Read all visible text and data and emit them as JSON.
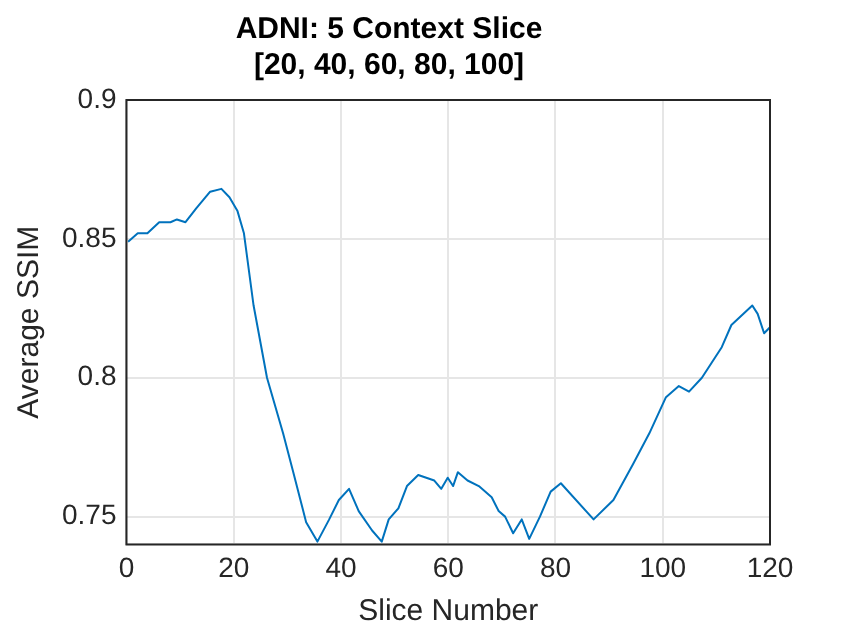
{
  "chart_data": {
    "type": "line",
    "title": "ADNI: 5 Context Slice",
    "subtitle": "[20, 40, 60, 80, 100]",
    "xlabel": "Slice Number",
    "ylabel": "Average SSIM",
    "series": [
      {
        "color": "#0072bd",
        "x": [
          0.3,
          2.1,
          3.9,
          6.1,
          8.2,
          9.4,
          11,
          13,
          15.6,
          17.7,
          19.2,
          20.7,
          21.9,
          23.7,
          26.2,
          29.2,
          31.1,
          33.5,
          35.6,
          37.8,
          39.6,
          41.5,
          43.3,
          45.8,
          47.6,
          48.9,
          50.7,
          52.3,
          54.4,
          57.4,
          58.7,
          59.9,
          60.9,
          61.8,
          63.6,
          65.7,
          68.1,
          69.4,
          70.6,
          72.1,
          73.7,
          75.1,
          77.1,
          79.1,
          81,
          87.1,
          90.8,
          94.5,
          97.5,
          100.6,
          103,
          104.9,
          107.3,
          111,
          112.8,
          116.7,
          117.7,
          118.9,
          119.9
        ],
        "values": [
          0.849,
          0.852,
          0.852,
          0.856,
          0.856,
          0.857,
          0.856,
          0.861,
          0.867,
          0.868,
          0.865,
          0.86,
          0.852,
          0.826,
          0.8,
          0.78,
          0.766,
          0.748,
          0.741,
          0.749,
          0.756,
          0.76,
          0.752,
          0.745,
          0.741,
          0.749,
          0.753,
          0.761,
          0.765,
          0.763,
          0.76,
          0.764,
          0.761,
          0.766,
          0.763,
          0.761,
          0.757,
          0.752,
          0.75,
          0.744,
          0.749,
          0.742,
          0.75,
          0.759,
          0.762,
          0.749,
          0.756,
          0.769,
          0.78,
          0.793,
          0.797,
          0.795,
          0.8,
          0.811,
          0.819,
          0.826,
          0.823,
          0.816,
          0.818
        ]
      }
    ],
    "xlim": [
      0,
      120
    ],
    "xticks": [
      0,
      20,
      40,
      60,
      80,
      100,
      120
    ],
    "ylim": [
      0.74,
      0.9
    ],
    "yticks": [
      0.75,
      0.8,
      0.85,
      0.9
    ],
    "grid": true,
    "legend": false,
    "marker": "none",
    "line_style": "solid"
  }
}
